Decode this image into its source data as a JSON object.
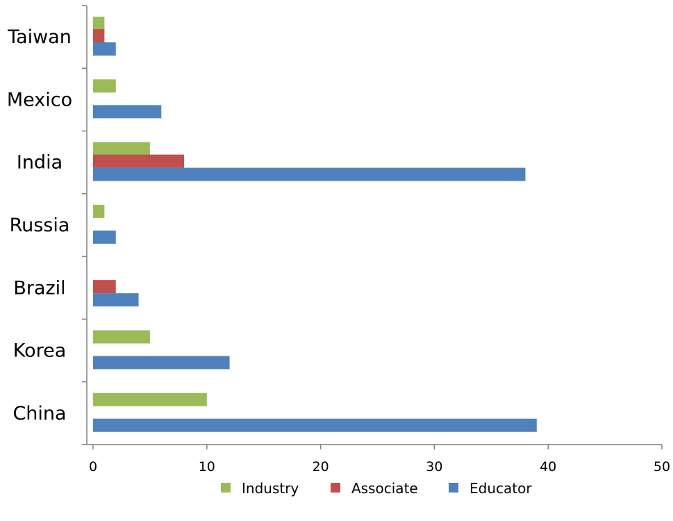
{
  "chart_data": {
    "type": "bar",
    "orientation": "horizontal",
    "categories": [
      "Taiwan",
      "Mexico",
      "India",
      "Russia",
      "Brazil",
      "Korea",
      "China"
    ],
    "series": [
      {
        "name": "Industry",
        "color": "#9bbb59",
        "values": [
          1,
          2,
          5,
          1,
          0,
          5,
          10
        ]
      },
      {
        "name": "Associate",
        "color": "#c0504d",
        "values": [
          1,
          0,
          8,
          0,
          2,
          0,
          0
        ]
      },
      {
        "name": "Educator",
        "color": "#4f81bd",
        "values": [
          2,
          6,
          38,
          2,
          4,
          12,
          39
        ]
      }
    ],
    "xlim": [
      0,
      50
    ],
    "xticks": [
      "0",
      "10",
      "20",
      "30",
      "40",
      "50"
    ],
    "grid": false,
    "legend_position": "bottom"
  }
}
